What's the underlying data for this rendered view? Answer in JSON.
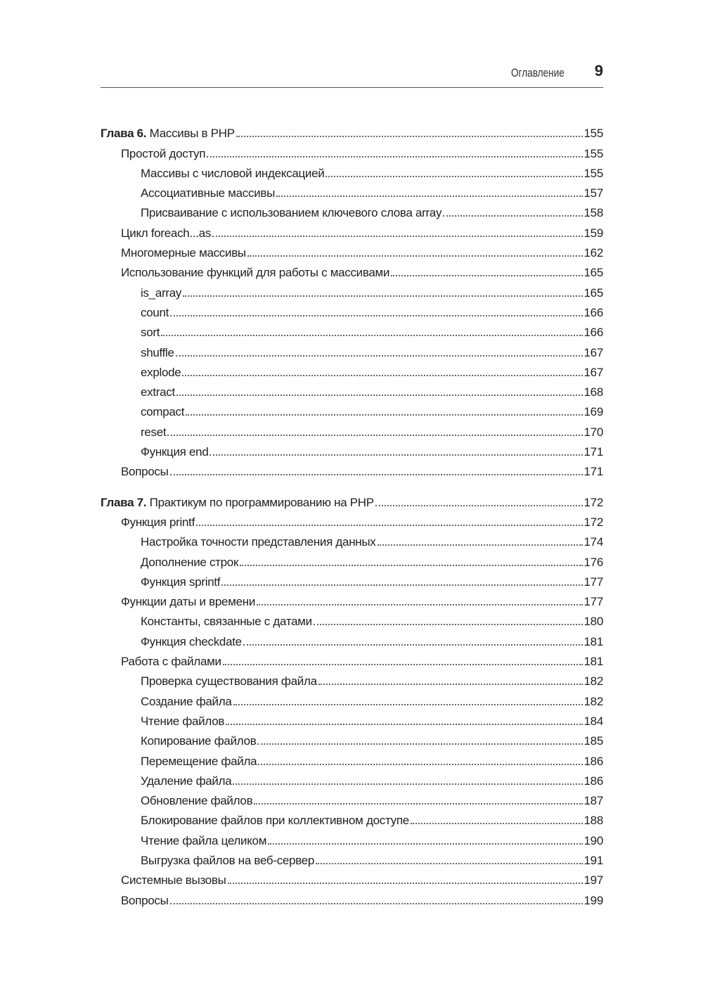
{
  "header": {
    "title": "Оглавление",
    "page": "9"
  },
  "chapters": [
    {
      "prefix": "Глава 6.",
      "title": "Массивы в PHP",
      "page": "155",
      "entries": [
        {
          "level": 1,
          "title": "Простой доступ",
          "page": "155"
        },
        {
          "level": 2,
          "title": "Массивы с числовой индексацией",
          "page": "155"
        },
        {
          "level": 2,
          "title": "Ассоциативные массивы",
          "page": "157"
        },
        {
          "level": 2,
          "title": "Присваивание с использованием ключевого слова array",
          "page": "158"
        },
        {
          "level": 1,
          "title": "Цикл foreach...as",
          "page": "159"
        },
        {
          "level": 1,
          "title": "Многомерные массивы",
          "page": "162"
        },
        {
          "level": 1,
          "title": "Использование функций для работы с массивами",
          "page": "165"
        },
        {
          "level": 2,
          "title": "is_array",
          "page": "165"
        },
        {
          "level": 2,
          "title": "count",
          "page": "166"
        },
        {
          "level": 2,
          "title": "sort",
          "page": "166"
        },
        {
          "level": 2,
          "title": "shuffle",
          "page": "167"
        },
        {
          "level": 2,
          "title": "explode",
          "page": "167"
        },
        {
          "level": 2,
          "title": "extract",
          "page": "168"
        },
        {
          "level": 2,
          "title": "compact",
          "page": "169"
        },
        {
          "level": 2,
          "title": "reset",
          "page": "170"
        },
        {
          "level": 2,
          "title": "Функция end",
          "page": "171"
        },
        {
          "level": 1,
          "title": "Вопросы",
          "page": "171"
        }
      ]
    },
    {
      "prefix": "Глава 7.",
      "title": "Практикум по программированию на PHP",
      "page": "172",
      "entries": [
        {
          "level": 1,
          "title": "Функция printf",
          "page": "172"
        },
        {
          "level": 2,
          "title": "Настройка точности представления данных",
          "page": "174"
        },
        {
          "level": 2,
          "title": "Дополнение строк",
          "page": "176"
        },
        {
          "level": 2,
          "title": "Функция sprintf",
          "page": "177"
        },
        {
          "level": 1,
          "title": "Функции даты и времени",
          "page": "177"
        },
        {
          "level": 2,
          "title": "Константы, связанные с датами",
          "page": "180"
        },
        {
          "level": 2,
          "title": "Функция checkdate",
          "page": "181"
        },
        {
          "level": 1,
          "title": "Работа с файлами",
          "page": "181"
        },
        {
          "level": 2,
          "title": "Проверка существования файла",
          "page": "182"
        },
        {
          "level": 2,
          "title": "Создание файла",
          "page": "182"
        },
        {
          "level": 2,
          "title": "Чтение файлов",
          "page": "184"
        },
        {
          "level": 2,
          "title": "Копирование файлов",
          "page": "185"
        },
        {
          "level": 2,
          "title": "Перемещение файла",
          "page": "186"
        },
        {
          "level": 2,
          "title": "Удаление файла",
          "page": "186"
        },
        {
          "level": 2,
          "title": "Обновление файлов",
          "page": "187"
        },
        {
          "level": 2,
          "title": "Блокирование файлов при коллективном доступе",
          "page": "188"
        },
        {
          "level": 2,
          "title": "Чтение файла целиком",
          "page": "190"
        },
        {
          "level": 2,
          "title": "Выгрузка файлов на веб-сервер",
          "page": "191"
        },
        {
          "level": 1,
          "title": "Системные вызовы",
          "page": "197"
        },
        {
          "level": 1,
          "title": "Вопросы",
          "page": "199"
        }
      ]
    }
  ]
}
